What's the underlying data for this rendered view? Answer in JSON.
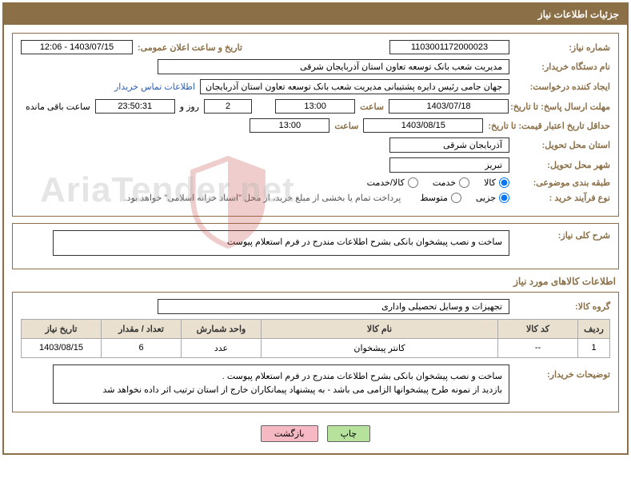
{
  "title": "جزئیات اطلاعات نیاز",
  "fields": {
    "need_no_label": "شماره نیاز:",
    "need_no": "1103001172000023",
    "announce_label": "تاریخ و ساعت اعلان عمومی:",
    "announce_val": "1403/07/15 - 12:06",
    "buyer_org_label": "نام دستگاه خریدار:",
    "buyer_org": "مدیریت شعب بانک توسعه تعاون استان آذربایجان شرقی",
    "requester_label": "ایجاد کننده درخواست:",
    "requester": "جهان جامی رئیس دایره پشتیبانی مدیریت شعب بانک توسعه تعاون استان آذربایجان",
    "contact_link": "اطلاعات تماس خریدار",
    "deadline_label": "مهلت ارسال پاسخ: تا تاریخ:",
    "deadline_date": "1403/07/18",
    "hour_label": "ساعت",
    "deadline_time": "13:00",
    "days_val": "2",
    "days_suffix": "روز و",
    "countdown": "23:50:31",
    "remaining": "ساعت باقی مانده",
    "validity_label": "حداقل تاریخ اعتبار قیمت: تا تاریخ:",
    "validity_date": "1403/08/15",
    "validity_time": "13:00",
    "province_label": "استان محل تحویل:",
    "province": "آذربایجان شرقی",
    "city_label": "شهر محل تحویل:",
    "city": "تبریز",
    "category_label": "طبقه بندی موضوعی:",
    "cat_goods": "کالا",
    "cat_service": "خدمت",
    "cat_both": "کالا/خدمت",
    "purchase_type_label": "نوع فرآیند خرید :",
    "pt_partial": "جزیی",
    "pt_medium": "متوسط",
    "purchase_note": "پرداخت تمام یا بخشی از مبلغ خرید، از محل \"اسناد خزانه اسلامی\" خواهد بود."
  },
  "summary": {
    "label": "شرح کلی نیاز:",
    "text": "ساخت و نصب پیشخوان بانکی بشرح اطلاعات مندرج در فرم استعلام پیوست"
  },
  "goods_section_title": "اطلاعات کالاهای مورد نیاز",
  "goods_group": {
    "label": "گروه کالا:",
    "value": "تجهیزات و وسایل تحصیلی واداری"
  },
  "table": {
    "headers": {
      "row": "ردیف",
      "code": "کد کالا",
      "name": "نام کالا",
      "unit": "واحد شمارش",
      "qty": "تعداد / مقدار",
      "date": "تاریخ نیاز"
    },
    "rows": [
      {
        "row": "1",
        "code": "--",
        "name": "کانتر پیشخوان",
        "unit": "عدد",
        "qty": "6",
        "date": "1403/08/15"
      }
    ]
  },
  "buyer_notes": {
    "label": "توضیحات خریدار:",
    "text": "ساخت و نصب پیشخوان بانکی بشرح اطلاعات مندرج در فرم استعلام پیوست .\nبازدید از نمونه طرح پیشخوانها الزامی می باشد - به پیشنهاد پیمانکاران خارج از استان ترتیب اثر داده نخواهد شد"
  },
  "buttons": {
    "print": "چاپ",
    "back": "بازگشت"
  },
  "watermark": "AriaTender.net",
  "colors": {
    "brand": "#8b6f47",
    "btn_green": "#b7e29b",
    "btn_pink": "#f6b8c3"
  }
}
